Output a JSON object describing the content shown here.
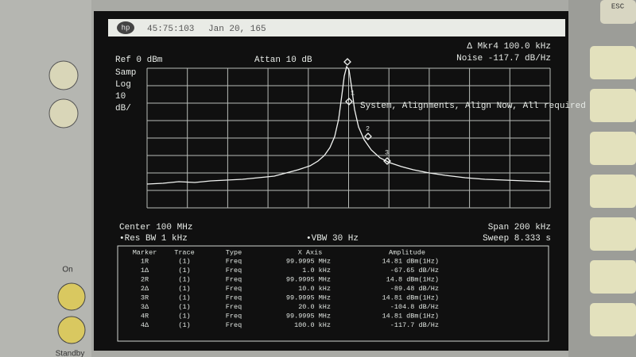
{
  "header": {
    "logo": "hp",
    "time": "45:75:103",
    "date": "Jan 20, 165"
  },
  "settings": {
    "ref": "Ref 0 dBm",
    "atten": "Attan 10 dB",
    "detector": "Samp",
    "scale": "Log",
    "per_div": "10",
    "unit": "dB/",
    "marker_readout": "Δ Mkr4  100.0 kHz",
    "noise_readout": "Noise  -117.7 dB/Hz",
    "center": "Center 100 MHz",
    "span": "Span 200 kHz",
    "rbw": "•Res BW 1 kHz",
    "vbw": "•VBW 30 Hz",
    "sweep": "Sweep 8.333 s"
  },
  "message": "System, Alignments, Align Now, All required",
  "trace_markers": [
    "1",
    "2",
    "3"
  ],
  "table": {
    "columns": [
      "Marker",
      "Trace",
      "Type",
      "X Axis",
      "Amplitude"
    ],
    "rows": [
      [
        "1R",
        "(1)",
        "Freq",
        "99.9995 MHz",
        "14.81 dBm(1Hz)"
      ],
      [
        "1Δ",
        "(1)",
        "Freq",
        "1.0 kHz",
        "-67.65 dB/Hz"
      ],
      [
        "2R",
        "(1)",
        "Freq",
        "99.9995 MHz",
        "14.8 dBm(1Hz)"
      ],
      [
        "2Δ",
        "(1)",
        "Freq",
        "10.0 kHz",
        "-89.48 dB/Hz"
      ],
      [
        "3R",
        "(1)",
        "Freq",
        "99.9995 MHz",
        "14.81 dBm(1Hz)"
      ],
      [
        "3Δ",
        "(1)",
        "Freq",
        "20.0 kHz",
        "-104.8 dB/Hz"
      ],
      [
        "4R",
        "(1)",
        "Freq",
        "99.9995 MHz",
        "14.81 dBm(1Hz)"
      ],
      [
        "4Δ",
        "(1)",
        "Freq",
        "100.0 kHz",
        "-117.7 dB/Hz"
      ]
    ]
  },
  "buttons": {
    "on": "On",
    "standby": "Standby",
    "esc": "ESC"
  }
}
